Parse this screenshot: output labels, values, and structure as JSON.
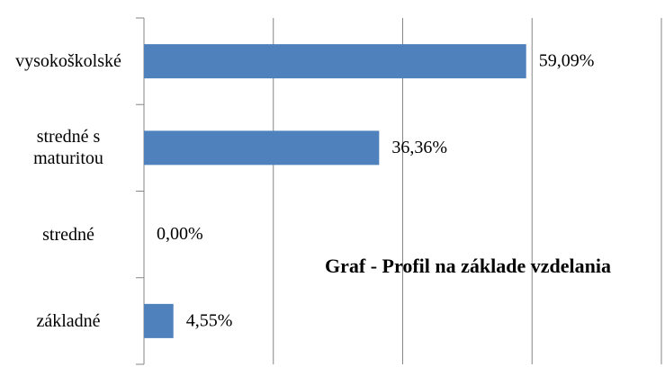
{
  "chart_data": {
    "type": "bar",
    "orientation": "horizontal",
    "title": "Graf - Profil na základe vzdelania",
    "categories": [
      "vysokoškolské",
      "stredné s maturitou",
      "stredné",
      "základné"
    ],
    "values": [
      59.09,
      36.36,
      0,
      4.55
    ],
    "value_labels": [
      "59,09%",
      "36,36%",
      "0,00%",
      "4,55%"
    ],
    "color": "#4f81bd",
    "xlim": [
      0,
      80
    ],
    "xticks": [
      0,
      20,
      40,
      60,
      80
    ],
    "grid": true
  }
}
